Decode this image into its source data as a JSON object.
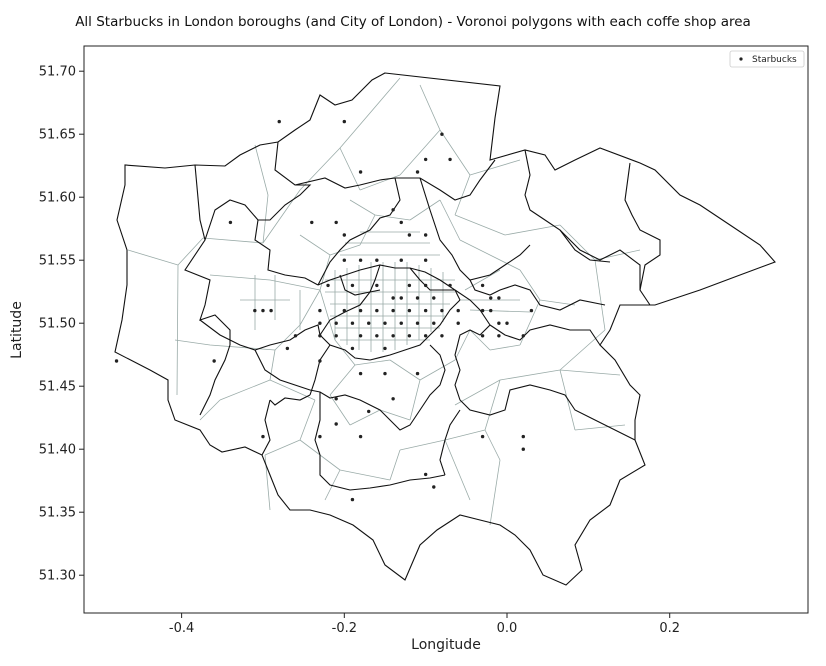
{
  "chart_data": {
    "type": "scatter",
    "title": "All Starbucks in London boroughs (and City of London) - Voronoi polygons with each coffe shop area",
    "xlabel": "Longitude",
    "ylabel": "Latitude",
    "xlim": [
      -0.52,
      0.37
    ],
    "ylim": [
      51.27,
      51.72
    ],
    "x_ticks": [
      -0.4,
      -0.2,
      0.0,
      0.2
    ],
    "x_tick_labels": [
      "-0.4",
      "-0.2",
      "0.0",
      "0.2"
    ],
    "y_ticks": [
      51.3,
      51.35,
      51.4,
      51.45,
      51.5,
      51.55,
      51.6,
      51.65,
      51.7
    ],
    "y_tick_labels": [
      "51.30",
      "51.35",
      "51.40",
      "51.45",
      "51.50",
      "51.55",
      "51.60",
      "51.65",
      "51.70"
    ],
    "grid": false,
    "legend_position": "top-right",
    "series": [
      {
        "name": "Starbucks",
        "points": [
          [
            -0.28,
            51.66
          ],
          [
            -0.2,
            51.66
          ],
          [
            -0.08,
            51.65
          ],
          [
            -0.1,
            51.63
          ],
          [
            -0.07,
            51.63
          ],
          [
            -0.18,
            51.62
          ],
          [
            -0.11,
            51.62
          ],
          [
            -0.34,
            51.58
          ],
          [
            -0.24,
            51.58
          ],
          [
            -0.21,
            51.58
          ],
          [
            -0.14,
            51.59
          ],
          [
            -0.13,
            51.58
          ],
          [
            -0.2,
            51.57
          ],
          [
            -0.12,
            51.57
          ],
          [
            -0.1,
            51.57
          ],
          [
            -0.2,
            51.55
          ],
          [
            -0.18,
            51.55
          ],
          [
            -0.16,
            51.55
          ],
          [
            -0.13,
            51.55
          ],
          [
            -0.1,
            51.55
          ],
          [
            -0.22,
            51.53
          ],
          [
            -0.19,
            51.53
          ],
          [
            -0.16,
            51.53
          ],
          [
            -0.12,
            51.53
          ],
          [
            -0.1,
            51.53
          ],
          [
            -0.14,
            51.52
          ],
          [
            -0.13,
            51.52
          ],
          [
            -0.11,
            51.52
          ],
          [
            -0.09,
            51.52
          ],
          [
            -0.07,
            51.53
          ],
          [
            -0.03,
            51.53
          ],
          [
            -0.02,
            51.52
          ],
          [
            -0.01,
            51.52
          ],
          [
            -0.31,
            51.51
          ],
          [
            -0.3,
            51.51
          ],
          [
            -0.29,
            51.51
          ],
          [
            -0.23,
            51.51
          ],
          [
            -0.2,
            51.51
          ],
          [
            -0.18,
            51.51
          ],
          [
            -0.16,
            51.51
          ],
          [
            -0.14,
            51.51
          ],
          [
            -0.12,
            51.51
          ],
          [
            -0.1,
            51.51
          ],
          [
            -0.08,
            51.51
          ],
          [
            -0.06,
            51.51
          ],
          [
            -0.03,
            51.51
          ],
          [
            -0.02,
            51.51
          ],
          [
            0.03,
            51.51
          ],
          [
            -0.23,
            51.5
          ],
          [
            -0.21,
            51.5
          ],
          [
            -0.19,
            51.5
          ],
          [
            -0.17,
            51.5
          ],
          [
            -0.15,
            51.5
          ],
          [
            -0.13,
            51.5
          ],
          [
            -0.11,
            51.5
          ],
          [
            -0.09,
            51.5
          ],
          [
            -0.06,
            51.5
          ],
          [
            -0.01,
            51.5
          ],
          [
            0.0,
            51.5
          ],
          [
            -0.26,
            51.49
          ],
          [
            -0.23,
            51.49
          ],
          [
            -0.21,
            51.49
          ],
          [
            -0.18,
            51.49
          ],
          [
            -0.16,
            51.49
          ],
          [
            -0.14,
            51.49
          ],
          [
            -0.12,
            51.49
          ],
          [
            -0.1,
            51.49
          ],
          [
            -0.08,
            51.49
          ],
          [
            -0.03,
            51.49
          ],
          [
            -0.01,
            51.49
          ],
          [
            0.02,
            51.49
          ],
          [
            -0.19,
            51.48
          ],
          [
            -0.15,
            51.48
          ],
          [
            -0.23,
            51.47
          ],
          [
            -0.18,
            51.46
          ],
          [
            -0.15,
            51.46
          ],
          [
            -0.11,
            51.46
          ],
          [
            -0.48,
            51.47
          ],
          [
            -0.36,
            51.47
          ],
          [
            -0.27,
            51.48
          ],
          [
            -0.21,
            51.44
          ],
          [
            -0.17,
            51.43
          ],
          [
            -0.14,
            51.44
          ],
          [
            -0.21,
            51.42
          ],
          [
            -0.23,
            51.41
          ],
          [
            -0.18,
            51.41
          ],
          [
            -0.3,
            51.41
          ],
          [
            -0.03,
            51.41
          ],
          [
            0.02,
            51.41
          ],
          [
            0.02,
            51.4
          ],
          [
            -0.1,
            51.38
          ],
          [
            -0.09,
            51.37
          ],
          [
            -0.19,
            51.36
          ]
        ]
      }
    ]
  }
}
